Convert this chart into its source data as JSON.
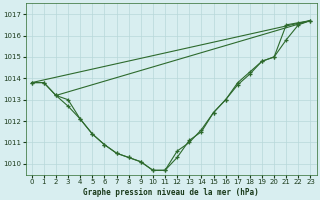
{
  "title": "Graphe pression niveau de la mer (hPa)",
  "bg_color": "#d8eef0",
  "grid_color": "#b8d8da",
  "line_color": "#2d6a2d",
  "x_min": -0.5,
  "x_max": 23.5,
  "y_min": 1009.5,
  "y_max": 1017.5,
  "yticks": [
    1010,
    1011,
    1012,
    1013,
    1014,
    1015,
    1016,
    1017
  ],
  "xticks": [
    0,
    1,
    2,
    3,
    4,
    5,
    6,
    7,
    8,
    9,
    10,
    11,
    12,
    13,
    14,
    15,
    16,
    17,
    18,
    19,
    20,
    21,
    22,
    23
  ],
  "series": [
    {
      "x": [
        0,
        1,
        2,
        3,
        4,
        5,
        6,
        7,
        8,
        9,
        10,
        11,
        12,
        13,
        14,
        15,
        16,
        17,
        18,
        19,
        20,
        21,
        22,
        23
      ],
      "y": [
        1013.8,
        1013.8,
        1013.2,
        1012.7,
        1012.1,
        1011.4,
        1010.9,
        1010.5,
        1010.3,
        1010.1,
        1009.7,
        1009.7,
        1010.3,
        1011.1,
        1011.5,
        1012.4,
        1013.0,
        1013.7,
        1014.2,
        1014.8,
        1015.0,
        1016.5,
        1016.6,
        1016.7
      ],
      "has_markers": true
    },
    {
      "x": [
        0,
        1,
        2,
        3,
        4,
        5,
        6,
        7,
        8,
        9,
        10,
        11,
        12,
        13,
        14,
        15,
        16,
        17,
        18,
        19,
        20,
        21,
        22,
        23
      ],
      "y": [
        1013.8,
        1013.8,
        1013.2,
        1013.0,
        1012.1,
        1011.4,
        1010.9,
        1010.5,
        1010.3,
        1010.1,
        1009.7,
        1009.7,
        1010.6,
        1011.0,
        1011.6,
        1012.4,
        1013.0,
        1013.8,
        1014.3,
        1014.8,
        1015.0,
        1015.8,
        1016.5,
        1016.7
      ],
      "has_markers": true
    },
    {
      "x": [
        0,
        23
      ],
      "y": [
        1013.8,
        1016.7
      ],
      "has_markers": false
    },
    {
      "x": [
        2,
        23
      ],
      "y": [
        1013.2,
        1016.7
      ],
      "has_markers": false
    }
  ]
}
